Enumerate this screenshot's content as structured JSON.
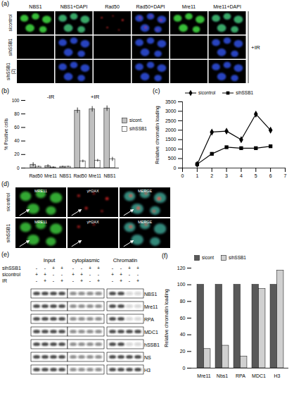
{
  "panels": {
    "a": {
      "label": "(a)",
      "columns": [
        "NBS1",
        "NBS1+DAPI",
        "Rad50",
        "Rad50+DAPI",
        "Mre11",
        "Mre11+DAPI"
      ],
      "rows": [
        "sicontrol",
        "sihSSB1",
        "sihSSB1 (2)"
      ],
      "condition": "+IR"
    },
    "d": {
      "label": "(d)",
      "columns": [
        "MRE11",
        "γH2AX",
        "MERGE"
      ],
      "rows": [
        "sicontrol",
        "sihSSB1"
      ]
    },
    "e": {
      "label": "(e)",
      "fractions": [
        "Input",
        "cytoplasmic",
        "Chromatin"
      ],
      "conditions": [
        {
          "name": "sihSSB1",
          "signs": [
            "-",
            "-",
            "+",
            "+",
            "-",
            "-",
            "+",
            "+",
            "-",
            "-",
            "+",
            "+"
          ]
        },
        {
          "name": "sicontrol",
          "signs": [
            "+",
            "+",
            "-",
            "-",
            "+",
            "+",
            "-",
            "-",
            "+",
            "+",
            "-",
            "-"
          ]
        },
        {
          "name": "IR",
          "signs": [
            "-",
            "+",
            "-",
            "+",
            "-",
            "+",
            "-",
            "+",
            "-",
            "+",
            "-",
            "+"
          ]
        }
      ],
      "bands": [
        "NBS1",
        "Mre11",
        "RPA",
        "MDC1",
        "hSSB1",
        "NS",
        "H3"
      ]
    }
  },
  "chart_data": [
    {
      "panel": "(b)",
      "type": "bar",
      "y_label": "% Positive cells",
      "groups": [
        {
          "name": "-IR",
          "categories": [
            "Rad50",
            "Mre11",
            "NBS1"
          ]
        },
        {
          "name": "+IR",
          "categories": [
            "Rad50",
            "Mre11",
            "NBS1"
          ]
        }
      ],
      "series": [
        {
          "name": "sicont.",
          "color": "#c0c0c0",
          "values": [
            5,
            3,
            2,
            85,
            87,
            88
          ],
          "errors": [
            3,
            2,
            1,
            4,
            4,
            4
          ]
        },
        {
          "name": "sihSSB1",
          "color": "#ffffff",
          "values": [
            2,
            1,
            2,
            10,
            11,
            13
          ],
          "errors": [
            1,
            1,
            1,
            2,
            2,
            3
          ]
        }
      ],
      "ylim": [
        0,
        100
      ],
      "yticks": [
        0,
        20,
        40,
        60,
        80,
        100
      ],
      "grid": false,
      "legend": "right"
    },
    {
      "panel": "(c)",
      "type": "line",
      "y_label": "Relative chromatin loading",
      "x": [
        1,
        2,
        3,
        4,
        5,
        6
      ],
      "series": [
        {
          "name": "sicontrol",
          "color": "#000000",
          "marker": "diamond",
          "values": [
            200,
            1900,
            1950,
            1500,
            2850,
            2000
          ]
        },
        {
          "name": "sihSSB1",
          "color": "#000000",
          "marker": "square",
          "values": [
            200,
            750,
            1100,
            1050,
            1050,
            1150
          ]
        }
      ],
      "xlim": [
        0,
        7
      ],
      "xticks": [
        0,
        1,
        2,
        3,
        4,
        5,
        6,
        7
      ],
      "ylim": [
        0,
        3500
      ],
      "yticks": [
        0,
        500,
        1000,
        1500,
        2000,
        2500,
        3000,
        3500
      ],
      "grid": false,
      "legend": "top"
    },
    {
      "panel": "(f)",
      "type": "bar",
      "y_label": "Relative chromatin loading",
      "categories": [
        "Mre11",
        "Nbs1",
        "RPA",
        "MDC1",
        "H3"
      ],
      "series": [
        {
          "name": "sicont",
          "color": "#595959",
          "values": [
            100,
            100,
            100,
            100,
            100
          ]
        },
        {
          "name": "sihSSB1",
          "color": "#d0d0d0",
          "values": [
            23,
            27,
            14,
            95,
            117
          ]
        }
      ],
      "ylim": [
        0,
        120
      ],
      "yticks": [
        0,
        20,
        40,
        60,
        80,
        100,
        120
      ],
      "grid": false,
      "legend": "top"
    }
  ]
}
